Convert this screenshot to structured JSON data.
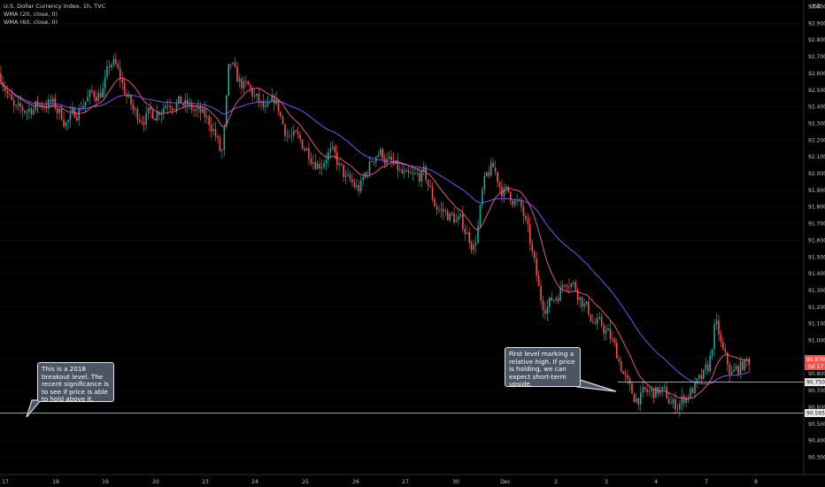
{
  "legend": {
    "line1": "U.S. Dollar Currency Index, 1h, TVC",
    "line2": "WMA (20, close, 0)",
    "line3": "WMA (60, close, 0)"
  },
  "currency": "USD",
  "annotations": {
    "left": "This is a 2018 breakout level. The recent significance is to see if price is able to hold above it.",
    "right": "First level marking a relative high. If price is holding, we can expect short-term upside."
  },
  "price_tags": {
    "last": "90.870",
    "countdown": "0d 17",
    "level_high": "90.750",
    "level_low": "90.565"
  },
  "colors": {
    "up": "#26a69a",
    "down": "#ef5350",
    "wma20": "#f06292",
    "wma60": "#7b61ff",
    "level_line": "#d0d4dc",
    "last_tag": "#ef5350"
  },
  "chart_data": {
    "type": "candlestick",
    "symbol": "U.S. Dollar Currency Index",
    "interval": "1h",
    "ylim": [
      90.24,
      93.09
    ],
    "y_ticks": [
      "93.000",
      "92.900",
      "92.800",
      "92.700",
      "92.600",
      "92.500",
      "92.400",
      "92.300",
      "92.200",
      "92.100",
      "92.000",
      "91.900",
      "91.800",
      "91.700",
      "91.600",
      "91.500",
      "91.400",
      "91.300",
      "91.200",
      "91.100",
      "91.000",
      "90.900",
      "90.800",
      "90.700",
      "90.600",
      "90.500",
      "90.400",
      "90.300"
    ],
    "x_ticks": [
      "17",
      "18",
      "19",
      "20",
      "23",
      "24",
      "25",
      "26",
      "27",
      "30",
      "Dec",
      "2",
      "3",
      "4",
      "7",
      "8"
    ],
    "horizontal_levels": [
      90.75,
      90.565
    ],
    "last_price": 90.87,
    "close_path": [
      {
        "x": 0,
        "y": 92.6
      },
      {
        "x": 15,
        "y": 92.35
      },
      {
        "x": 35,
        "y": 92.4
      },
      {
        "x": 55,
        "y": 92.43
      },
      {
        "x": 75,
        "y": 92.3
      },
      {
        "x": 95,
        "y": 92.45
      },
      {
        "x": 115,
        "y": 92.5
      },
      {
        "x": 125,
        "y": 92.7
      },
      {
        "x": 135,
        "y": 92.55
      },
      {
        "x": 150,
        "y": 92.35
      },
      {
        "x": 170,
        "y": 92.35
      },
      {
        "x": 190,
        "y": 92.45
      },
      {
        "x": 210,
        "y": 92.4
      },
      {
        "x": 225,
        "y": 92.35
      },
      {
        "x": 240,
        "y": 92.28
      },
      {
        "x": 250,
        "y": 92.05
      },
      {
        "x": 258,
        "y": 92.75
      },
      {
        "x": 265,
        "y": 92.55
      },
      {
        "x": 280,
        "y": 92.5
      },
      {
        "x": 300,
        "y": 92.35
      },
      {
        "x": 310,
        "y": 92.45
      },
      {
        "x": 320,
        "y": 92.25
      },
      {
        "x": 345,
        "y": 92.15
      },
      {
        "x": 360,
        "y": 92.05
      },
      {
        "x": 370,
        "y": 92.15
      },
      {
        "x": 390,
        "y": 91.95
      },
      {
        "x": 405,
        "y": 91.9
      },
      {
        "x": 415,
        "y": 92.05
      },
      {
        "x": 425,
        "y": 92.15
      },
      {
        "x": 440,
        "y": 92.05
      },
      {
        "x": 460,
        "y": 91.95
      },
      {
        "x": 478,
        "y": 92.0
      },
      {
        "x": 490,
        "y": 91.8
      },
      {
        "x": 505,
        "y": 91.75
      },
      {
        "x": 520,
        "y": 91.7
      },
      {
        "x": 535,
        "y": 91.55
      },
      {
        "x": 545,
        "y": 91.95
      },
      {
        "x": 555,
        "y": 92.05
      },
      {
        "x": 565,
        "y": 91.9
      },
      {
        "x": 580,
        "y": 91.85
      },
      {
        "x": 590,
        "y": 91.75
      },
      {
        "x": 600,
        "y": 91.5
      },
      {
        "x": 610,
        "y": 91.2
      },
      {
        "x": 625,
        "y": 91.25
      },
      {
        "x": 640,
        "y": 91.4
      },
      {
        "x": 655,
        "y": 91.25
      },
      {
        "x": 670,
        "y": 91.1
      },
      {
        "x": 685,
        "y": 91.05
      },
      {
        "x": 700,
        "y": 90.85
      },
      {
        "x": 712,
        "y": 90.65
      },
      {
        "x": 730,
        "y": 90.68
      },
      {
        "x": 745,
        "y": 90.7
      },
      {
        "x": 760,
        "y": 90.6
      },
      {
        "x": 775,
        "y": 90.68
      },
      {
        "x": 790,
        "y": 90.75
      },
      {
        "x": 800,
        "y": 90.85
      },
      {
        "x": 807,
        "y": 91.15
      },
      {
        "x": 815,
        "y": 90.9
      },
      {
        "x": 825,
        "y": 90.78
      },
      {
        "x": 835,
        "y": 90.85
      },
      {
        "x": 848,
        "y": 90.88
      }
    ]
  }
}
